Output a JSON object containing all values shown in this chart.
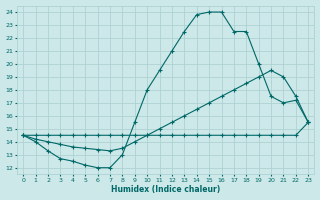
{
  "xlabel": "Humidex (Indice chaleur)",
  "bg_color": "#cce8e8",
  "grid_color": "#aacece",
  "line_color": "#006868",
  "xlim": [
    -0.5,
    23.5
  ],
  "ylim": [
    11.5,
    24.5
  ],
  "xticks": [
    0,
    1,
    2,
    3,
    4,
    5,
    6,
    7,
    8,
    9,
    10,
    11,
    12,
    13,
    14,
    15,
    16,
    17,
    18,
    19,
    20,
    21,
    22,
    23
  ],
  "yticks": [
    12,
    13,
    14,
    15,
    16,
    17,
    18,
    19,
    20,
    21,
    22,
    23,
    24
  ],
  "line1_x": [
    0,
    1,
    2,
    3,
    4,
    5,
    6,
    7,
    8,
    9,
    10,
    11,
    12,
    13,
    14,
    15,
    16,
    17,
    18,
    19,
    20,
    21,
    22,
    23
  ],
  "line1_y": [
    14.5,
    14.5,
    14.5,
    14.5,
    14.5,
    14.5,
    14.5,
    14.5,
    14.5,
    14.5,
    14.5,
    14.5,
    14.5,
    14.5,
    14.5,
    14.5,
    14.5,
    14.5,
    14.5,
    14.5,
    14.5,
    14.5,
    14.5,
    15.5
  ],
  "line2_x": [
    0,
    1,
    2,
    3,
    4,
    5,
    6,
    7,
    8,
    9,
    10,
    11,
    12,
    13,
    14,
    15,
    16,
    17,
    18,
    19,
    20,
    21,
    22,
    23
  ],
  "line2_y": [
    14.5,
    14.2,
    14.0,
    13.8,
    13.6,
    13.5,
    13.4,
    13.3,
    13.5,
    14.0,
    14.5,
    15.0,
    15.5,
    16.0,
    16.5,
    17.0,
    17.5,
    18.0,
    18.5,
    19.0,
    19.5,
    19.0,
    17.5,
    15.5
  ],
  "line3_x": [
    0,
    1,
    2,
    3,
    4,
    5,
    6,
    7,
    8,
    9,
    10,
    11,
    12,
    13,
    14,
    15,
    16,
    17,
    18,
    19,
    20,
    21,
    22,
    23
  ],
  "line3_y": [
    14.5,
    14.0,
    13.3,
    12.7,
    12.5,
    12.2,
    12.0,
    12.0,
    13.0,
    15.5,
    18.0,
    19.5,
    21.0,
    22.5,
    23.8,
    24.0,
    24.0,
    22.5,
    22.5,
    20.0,
    17.5,
    17.0,
    17.2,
    15.5
  ]
}
